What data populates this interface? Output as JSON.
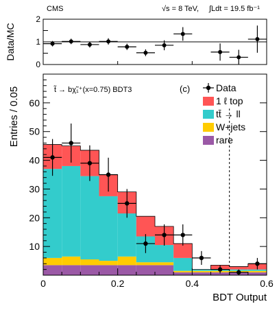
{
  "header": {
    "experiment": "CMS",
    "energy": "√s = 8 TeV,",
    "lumi": "∫Ldt = 19.5 fb⁻¹"
  },
  "chart_data": [
    {
      "type": "scatter",
      "panel": "ratio",
      "ylabel": "Data/MC",
      "ylim": [
        0,
        2
      ],
      "yticks": [
        "0",
        "0.5",
        "1",
        "1.5",
        "2"
      ],
      "reference_line": 1,
      "x": [
        0.025,
        0.075,
        0.125,
        0.175,
        0.225,
        0.275,
        0.325,
        0.375,
        0.425,
        0.475,
        0.525,
        0.575
      ],
      "values": [
        0.92,
        1.02,
        0.88,
        1.02,
        0.78,
        0.52,
        0.85,
        1.35,
        null,
        0.55,
        0.32,
        1.12
      ],
      "errors": [
        0.12,
        0.12,
        0.13,
        0.14,
        0.14,
        0.15,
        0.22,
        0.3,
        null,
        0.38,
        0.33,
        0.6
      ]
    },
    {
      "type": "bar",
      "stacked": true,
      "panel": "main",
      "annotation": "t̃ → bχ̃₁⁺(x=0.75) BDT3",
      "panel_label": "(c)",
      "xlabel": "BDT Output",
      "ylabel": "Entries / 0.05",
      "xlim": [
        0,
        0.6
      ],
      "ylim": [
        0,
        70
      ],
      "xticks": [
        "0",
        "0.2",
        "0.4",
        "0.6"
      ],
      "yticks": [
        "10",
        "20",
        "30",
        "40",
        "50",
        "60"
      ],
      "cut_line": 0.5,
      "bin_edges": [
        0,
        0.05,
        0.1,
        0.15,
        0.2,
        0.25,
        0.3,
        0.35,
        0.4,
        0.45,
        0.5,
        0.55,
        0.6
      ],
      "series": [
        {
          "name": "rare",
          "color": "#9b59a6",
          "values": [
            3.5,
            3.5,
            3.5,
            3.5,
            3.5,
            3.5,
            3.5,
            1,
            1,
            1,
            1,
            1
          ]
        },
        {
          "name": "W+jets",
          "color": "#ffcc00",
          "values": [
            2.5,
            3,
            2,
            1.5,
            3,
            1,
            1,
            0.5,
            0.5,
            0.5,
            0.5,
            0.5
          ]
        },
        {
          "name": "tt̄ → ll",
          "color": "#33cccc",
          "values": [
            31,
            31.5,
            29,
            22.5,
            15,
            9,
            6,
            4.5,
            0.5,
            0.5,
            0.5,
            0.5
          ]
        },
        {
          "name": "1 ℓ top",
          "color": "#ff5555",
          "values": [
            8.5,
            7,
            9,
            7.5,
            7.5,
            7,
            6.5,
            5,
            0,
            1.5,
            1,
            2
          ]
        }
      ],
      "data": {
        "name": "Data",
        "x": [
          0.025,
          0.075,
          0.125,
          0.175,
          0.225,
          0.275,
          0.325,
          0.375,
          0.425,
          0.475,
          0.525,
          0.575
        ],
        "values": [
          41,
          46,
          39,
          35,
          25,
          11,
          14,
          14,
          6,
          2,
          1,
          4
        ],
        "errors": [
          6.4,
          6.8,
          6.2,
          5.9,
          5,
          3.3,
          3.7,
          3.7,
          2.4,
          1.4,
          1,
          2
        ]
      },
      "legend_order": [
        "Data",
        "1 ℓ top",
        "tt̄ → ll",
        "W+jets",
        "rare"
      ],
      "legend_position": "top-right"
    }
  ]
}
